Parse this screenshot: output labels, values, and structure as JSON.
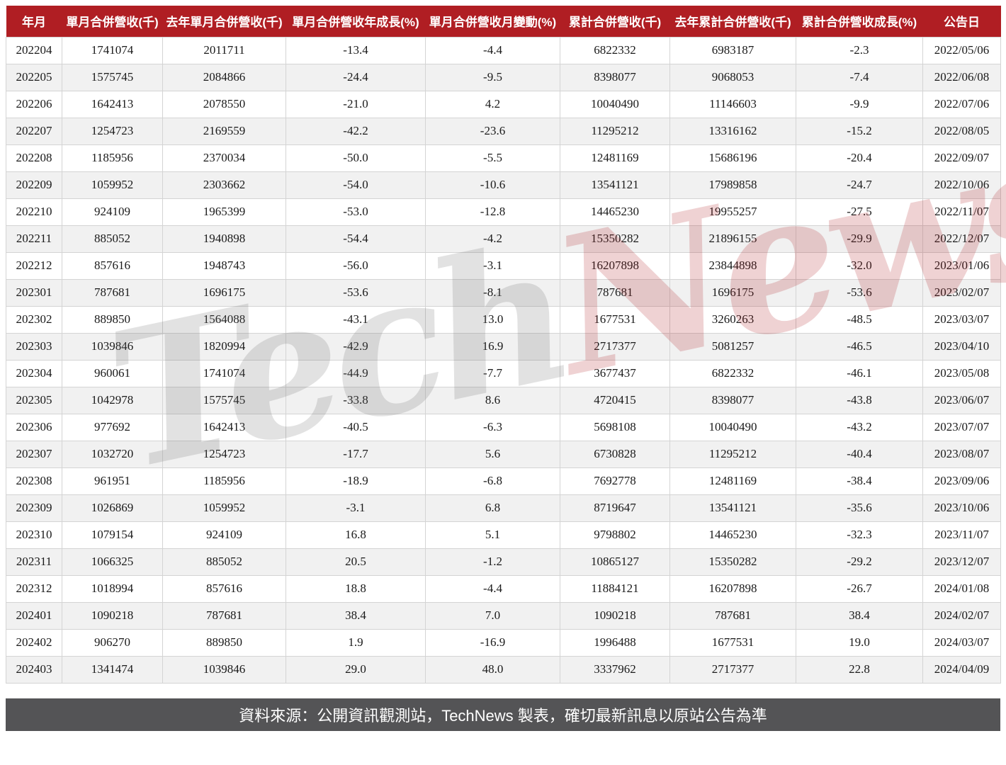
{
  "chart_data": {
    "type": "table",
    "columns": [
      "年月",
      "單月合併營收(千)",
      "去年單月合併營收(千)",
      "單月合併營收年成長(%)",
      "單月合併營收月變動(%)",
      "累計合併營收(千)",
      "去年累計合併營收(千)",
      "累計合併營收成長(%)",
      "公告日"
    ],
    "rows": [
      [
        "202204",
        "1741074",
        "2011711",
        "-13.4",
        "-4.4",
        "6822332",
        "6983187",
        "-2.3",
        "2022/05/06"
      ],
      [
        "202205",
        "1575745",
        "2084866",
        "-24.4",
        "-9.5",
        "8398077",
        "9068053",
        "-7.4",
        "2022/06/08"
      ],
      [
        "202206",
        "1642413",
        "2078550",
        "-21.0",
        "4.2",
        "10040490",
        "11146603",
        "-9.9",
        "2022/07/06"
      ],
      [
        "202207",
        "1254723",
        "2169559",
        "-42.2",
        "-23.6",
        "11295212",
        "13316162",
        "-15.2",
        "2022/08/05"
      ],
      [
        "202208",
        "1185956",
        "2370034",
        "-50.0",
        "-5.5",
        "12481169",
        "15686196",
        "-20.4",
        "2022/09/07"
      ],
      [
        "202209",
        "1059952",
        "2303662",
        "-54.0",
        "-10.6",
        "13541121",
        "17989858",
        "-24.7",
        "2022/10/06"
      ],
      [
        "202210",
        "924109",
        "1965399",
        "-53.0",
        "-12.8",
        "14465230",
        "19955257",
        "-27.5",
        "2022/11/07"
      ],
      [
        "202211",
        "885052",
        "1940898",
        "-54.4",
        "-4.2",
        "15350282",
        "21896155",
        "-29.9",
        "2022/12/07"
      ],
      [
        "202212",
        "857616",
        "1948743",
        "-56.0",
        "-3.1",
        "16207898",
        "23844898",
        "-32.0",
        "2023/01/06"
      ],
      [
        "202301",
        "787681",
        "1696175",
        "-53.6",
        "-8.1",
        "787681",
        "1696175",
        "-53.6",
        "2023/02/07"
      ],
      [
        "202302",
        "889850",
        "1564088",
        "-43.1",
        "13.0",
        "1677531",
        "3260263",
        "-48.5",
        "2023/03/07"
      ],
      [
        "202303",
        "1039846",
        "1820994",
        "-42.9",
        "16.9",
        "2717377",
        "5081257",
        "-46.5",
        "2023/04/10"
      ],
      [
        "202304",
        "960061",
        "1741074",
        "-44.9",
        "-7.7",
        "3677437",
        "6822332",
        "-46.1",
        "2023/05/08"
      ],
      [
        "202305",
        "1042978",
        "1575745",
        "-33.8",
        "8.6",
        "4720415",
        "8398077",
        "-43.8",
        "2023/06/07"
      ],
      [
        "202306",
        "977692",
        "1642413",
        "-40.5",
        "-6.3",
        "5698108",
        "10040490",
        "-43.2",
        "2023/07/07"
      ],
      [
        "202307",
        "1032720",
        "1254723",
        "-17.7",
        "5.6",
        "6730828",
        "11295212",
        "-40.4",
        "2023/08/07"
      ],
      [
        "202308",
        "961951",
        "1185956",
        "-18.9",
        "-6.8",
        "7692778",
        "12481169",
        "-38.4",
        "2023/09/06"
      ],
      [
        "202309",
        "1026869",
        "1059952",
        "-3.1",
        "6.8",
        "8719647",
        "13541121",
        "-35.6",
        "2023/10/06"
      ],
      [
        "202310",
        "1079154",
        "924109",
        "16.8",
        "5.1",
        "9798802",
        "14465230",
        "-32.3",
        "2023/11/07"
      ],
      [
        "202311",
        "1066325",
        "885052",
        "20.5",
        "-1.2",
        "10865127",
        "15350282",
        "-29.2",
        "2023/12/07"
      ],
      [
        "202312",
        "1018994",
        "857616",
        "18.8",
        "-4.4",
        "11884121",
        "16207898",
        "-26.7",
        "2024/01/08"
      ],
      [
        "202401",
        "1090218",
        "787681",
        "38.4",
        "7.0",
        "1090218",
        "787681",
        "38.4",
        "2024/02/07"
      ],
      [
        "202402",
        "906270",
        "889850",
        "1.9",
        "-16.9",
        "1996488",
        "1677531",
        "19.0",
        "2024/03/07"
      ],
      [
        "202403",
        "1341474",
        "1039846",
        "29.0",
        "48.0",
        "3337962",
        "2717377",
        "22.8",
        "2024/04/09"
      ]
    ],
    "legend_position": "none",
    "grid": true
  },
  "watermark": {
    "part1": "Tech",
    "part2": "News"
  },
  "footer": {
    "text": "資料來源：公開資訊觀測站，TechNews 製表，確切最新訊息以原站公告為準"
  },
  "colors": {
    "header_bg": "#B01E23",
    "footer_bg": "#545456",
    "row_alt_bg": "#F1F1F1",
    "cell_border": "#D4D4D4",
    "watermark_gray": "#6E6E6E",
    "watermark_red": "#B01E23"
  }
}
